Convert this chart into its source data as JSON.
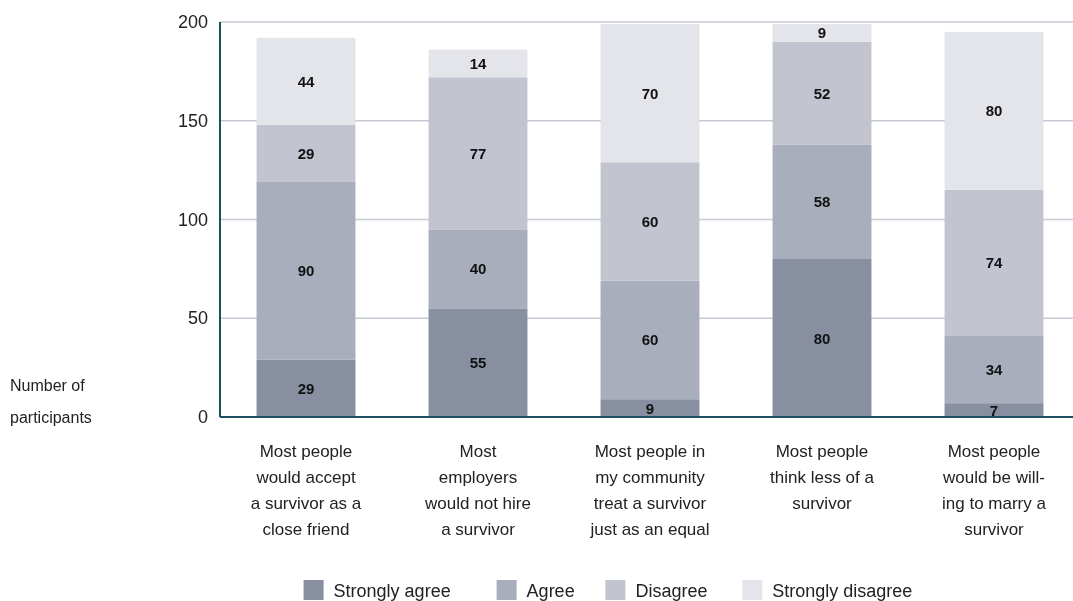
{
  "chart_data": {
    "type": "bar",
    "stacked": true,
    "annotations": [
      "Number of\nparticipants"
    ],
    "categories": [
      "Most people\nwould accept\na survivor as a\nclose friend",
      "Most\nemployers\nwould not hire\na survivor",
      "Most people in\nmy community\ntreat a survivor\njust as an equal",
      "Most people\nthink less of a\nsurvivor",
      "Most people\nwould be will-\ning to marry a\nsurvivor"
    ],
    "series": [
      {
        "name": "Strongly agree",
        "color": "#878fa0",
        "values": [
          29,
          55,
          9,
          80,
          7
        ]
      },
      {
        "name": "Agree",
        "color": "#a8aebb",
        "values": [
          90,
          40,
          60,
          58,
          34
        ]
      },
      {
        "name": "Disagree",
        "color": "#c2c5cf",
        "values": [
          29,
          77,
          60,
          52,
          74
        ]
      },
      {
        "name": "Strongly disagree",
        "color": "#e4e5ea",
        "values": [
          44,
          14,
          70,
          9,
          80
        ]
      }
    ],
    "ylim": [
      0,
      200
    ],
    "yticks": [
      0,
      50,
      100,
      150,
      200
    ],
    "grid": "y",
    "legend": "bottom",
    "data_labels": true
  }
}
